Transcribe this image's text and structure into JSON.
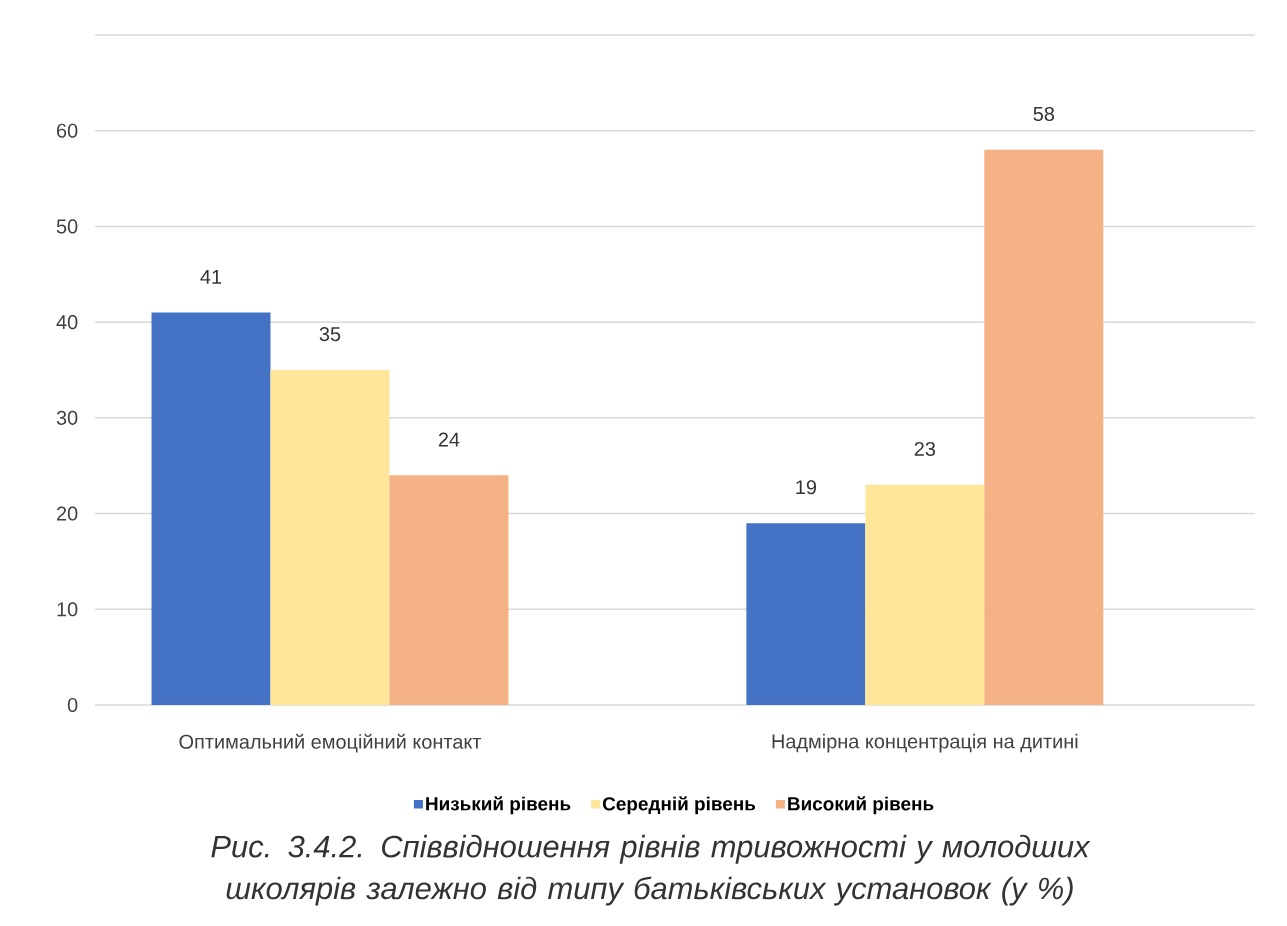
{
  "chart_data": {
    "type": "bar",
    "categories": [
      "Оптимальний емоційний контакт",
      "Надмірна концентрація на дитині"
    ],
    "series": [
      {
        "name": "Низький рівень",
        "color": "#4472c4",
        "values": [
          41,
          19
        ]
      },
      {
        "name": "Середній рівень",
        "color": "#ffe699",
        "values": [
          35,
          23
        ]
      },
      {
        "name": "Високий рівень",
        "color": "#f4b183",
        "values": [
          24,
          58
        ]
      }
    ],
    "ylim": [
      0,
      70
    ],
    "yticks": [
      0,
      10,
      20,
      30,
      40,
      50,
      60,
      {
        "value": 70,
        "label": null
      }
    ],
    "grid": "y",
    "legend": "bottom",
    "data_labels": true,
    "annotations": [
      "Рис. 3.4.2. Співвідношення рівнів тривожності у молодших школярів залежно від типу батьківських установок (у %)"
    ]
  }
}
